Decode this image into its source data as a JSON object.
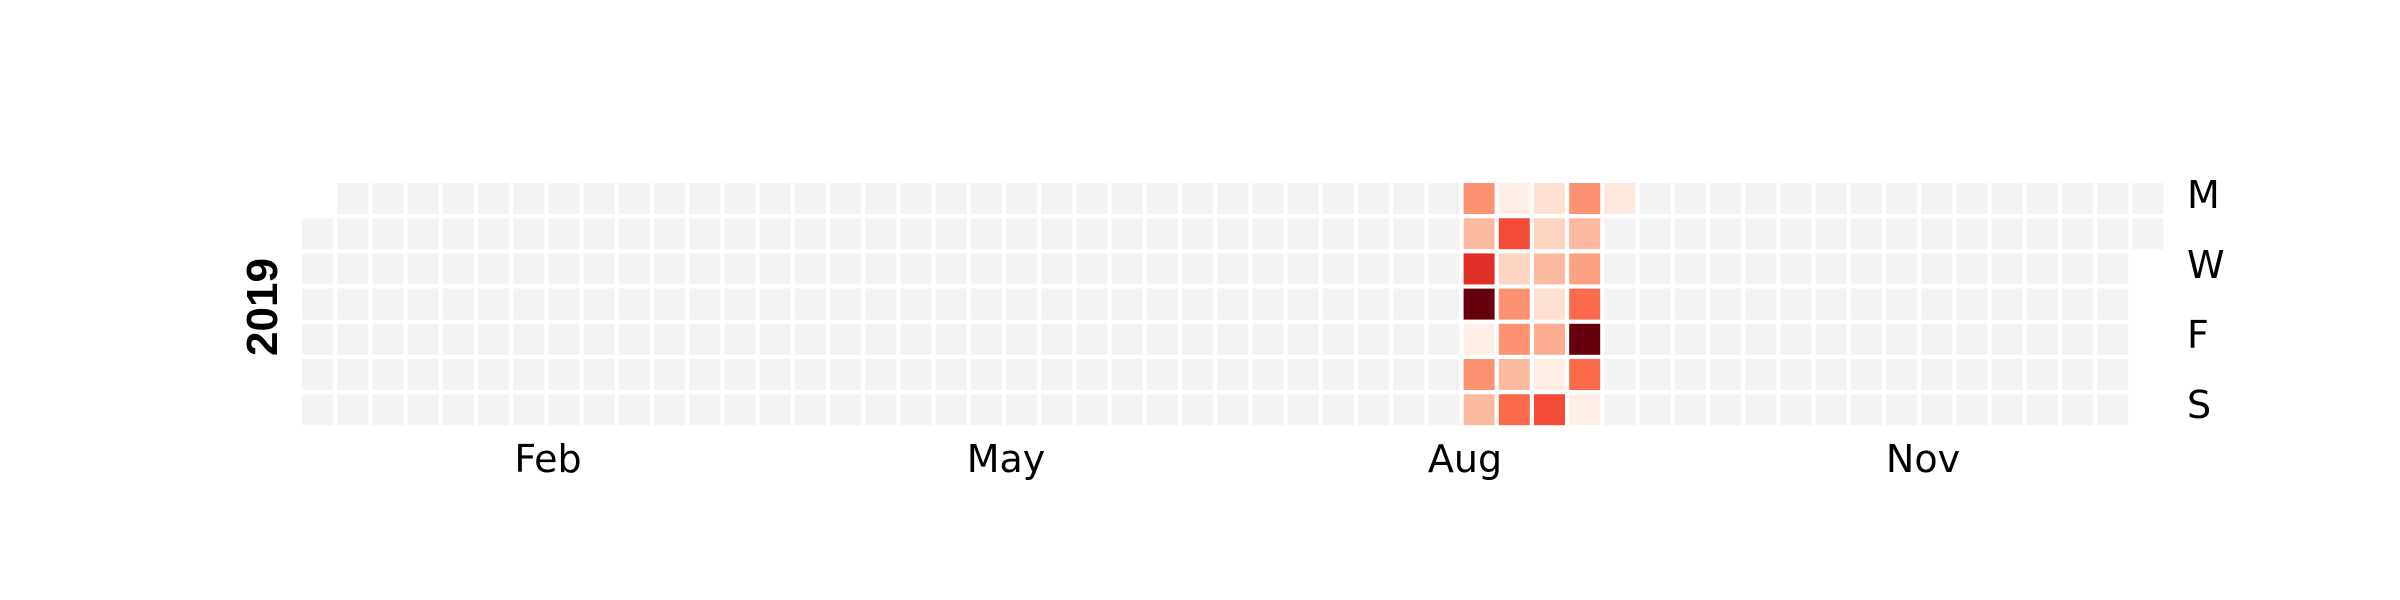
{
  "chart_data": {
    "type": "heatmap",
    "subtype": "calendar",
    "year": "2019",
    "weekday_labels": [
      "M",
      "W",
      "F",
      "S"
    ],
    "month_labels": [
      "Feb",
      "May",
      "Aug",
      "Nov"
    ],
    "colormap": "Reds",
    "empty_color": "#f3f3f3",
    "grid": false,
    "active_weeks": [
      {
        "days": [
          "0.45",
          "0.3",
          "0.8",
          "1",
          "0.05",
          "0.45",
          "0.3"
        ]
      },
      {
        "days": [
          "0.05",
          "0.7",
          "0.2",
          "0.45",
          "0.45",
          "0.3",
          "0.6"
        ]
      },
      {
        "days": [
          "0.15",
          "0.2",
          "0.3",
          "0.15",
          "0.35",
          "0.05",
          "0.7"
        ]
      },
      {
        "days": [
          "0.45",
          "0.3",
          "0.4",
          "0.6",
          "1",
          "0.6",
          "0.05"
        ]
      },
      {
        "days": [
          "0.1",
          "",
          "",
          "",
          "",
          "",
          ""
        ]
      }
    ]
  }
}
